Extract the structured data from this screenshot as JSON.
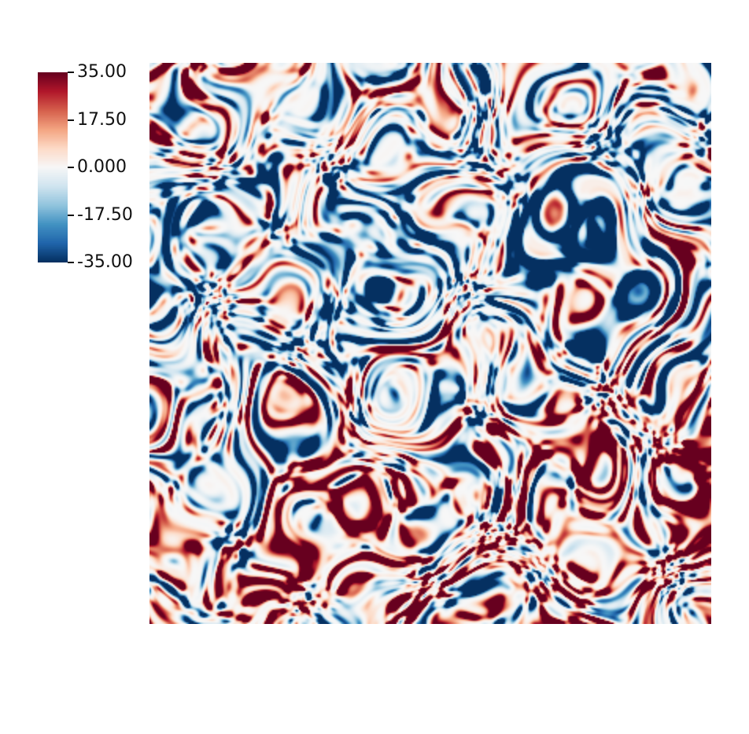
{
  "chart_data": {
    "type": "heatmap",
    "title": "",
    "colorbar": {
      "range": [
        -35,
        35
      ],
      "ticks": [
        35,
        17.5,
        0,
        -17.5,
        -35
      ],
      "tick_labels": [
        "35.00",
        "17.50",
        "0.000",
        "-17.50",
        "-35.00"
      ],
      "colormap": [
        "#053061",
        "#2166ac",
        "#4393c3",
        "#92c5de",
        "#d1e5f0",
        "#f7f7f7",
        "#fddbc7",
        "#f4a582",
        "#d6604d",
        "#b2182b",
        "#67001f"
      ]
    },
    "field": {
      "grid": "square",
      "description_of_values": "turbulent field, values mostly within [-35, 35], near zero background with thin positive (red) and negative (blue) filaments"
    }
  }
}
